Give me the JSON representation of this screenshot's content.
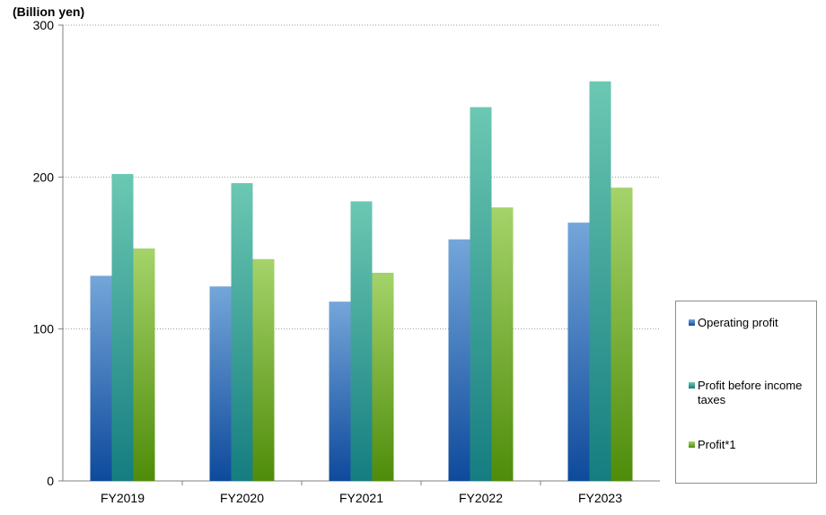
{
  "unit_label": "(Billion yen)",
  "chart_data": {
    "type": "bar",
    "categories": [
      "FY2019",
      "FY2020",
      "FY2021",
      "FY2022",
      "FY2023"
    ],
    "series": [
      {
        "name": "Operating profit",
        "values": [
          135,
          128,
          118,
          159,
          170
        ],
        "color_top": "#74a6d9",
        "color_bottom": "#0e4a9c"
      },
      {
        "name": "Profit before income taxes",
        "values": [
          202,
          196,
          184,
          246,
          263
        ],
        "color_top": "#6bc8b2",
        "color_bottom": "#157d80"
      },
      {
        "name": "Profit*1",
        "values": [
          153,
          146,
          137,
          180,
          193
        ],
        "color_top": "#a5d36a",
        "color_bottom": "#4f8c0a"
      }
    ],
    "y_ticks": [
      "0",
      "100",
      "200",
      "300"
    ],
    "ylim": [
      0,
      300
    ],
    "grid": true,
    "legend_position": "right"
  }
}
